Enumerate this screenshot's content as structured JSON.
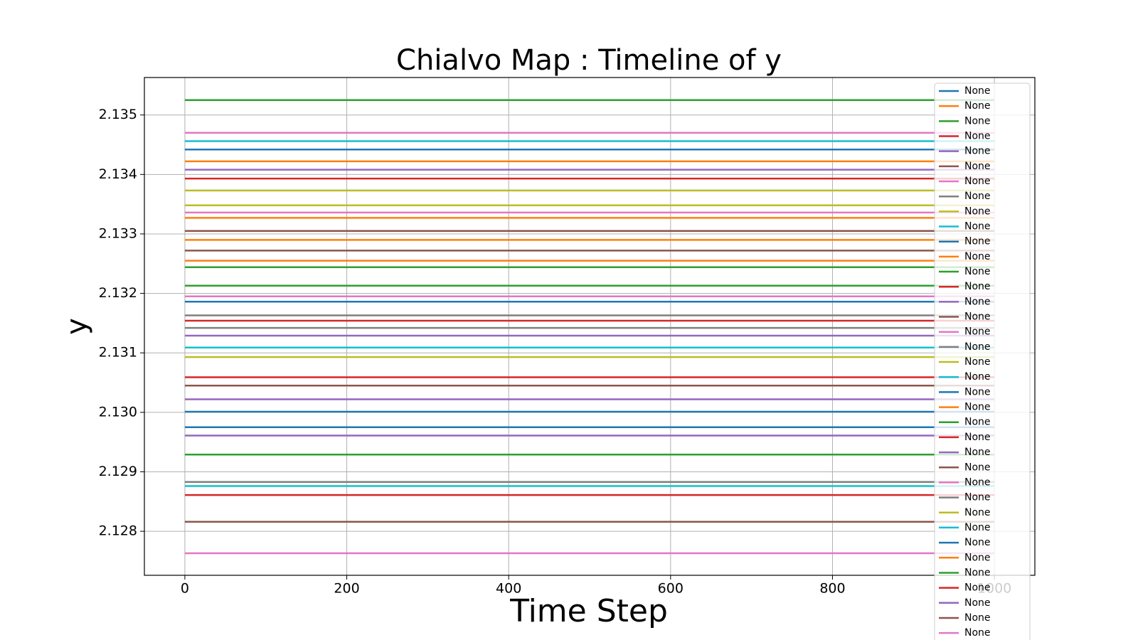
{
  "chart_data": {
    "type": "line",
    "title": "Chialvo Map : Timeline of y",
    "x_label": "Time Step",
    "y_label": "y",
    "x": [
      0,
      1000
    ],
    "xlim": [
      -50,
      1050
    ],
    "xticks": [
      0,
      200,
      400,
      600,
      800,
      1000
    ],
    "ylim": [
      2.12726,
      2.13563
    ],
    "yticks": [
      2.128,
      2.129,
      {
        "value": 2.13,
        "label": "2.130"
      },
      2.131,
      2.132,
      2.133,
      2.134,
      2.135
    ],
    "grid": true,
    "legend": "upper right",
    "series": [
      {
        "name": "None",
        "color": "#1f77b4",
        "values": [
          2.13442,
          2.13442
        ]
      },
      {
        "name": "None",
        "color": "#ff7f0e",
        "values": [
          2.13422,
          2.13422
        ]
      },
      {
        "name": "None",
        "color": "#2ca02c",
        "values": [
          2.13525,
          2.13525
        ]
      },
      {
        "name": "None",
        "color": "#d62728",
        "values": [
          2.13393,
          2.13393
        ]
      },
      {
        "name": "None",
        "color": "#9467bd",
        "values": [
          2.13408,
          2.13408
        ]
      },
      {
        "name": "None",
        "color": "#8c564b",
        "values": [
          2.13305,
          2.13305
        ]
      },
      {
        "name": "None",
        "color": "#e377c2",
        "values": [
          2.1347,
          2.1347
        ]
      },
      {
        "name": "None",
        "color": "#7f7f7f",
        "values": [
          2.12883,
          2.12883
        ]
      },
      {
        "name": "None",
        "color": "#bcbd22",
        "values": [
          2.13373,
          2.13373
        ]
      },
      {
        "name": "None",
        "color": "#17becf",
        "values": [
          2.13456,
          2.13456
        ]
      },
      {
        "name": "None",
        "color": "#1f77b4",
        "values": [
          2.13186,
          2.13186
        ]
      },
      {
        "name": "None",
        "color": "#ff7f0e",
        "values": [
          2.13255,
          2.13255
        ]
      },
      {
        "name": "None",
        "color": "#2ca02c",
        "values": [
          2.13244,
          2.13244
        ]
      },
      {
        "name": "None",
        "color": "#d62728",
        "values": [
          2.13154,
          2.13154
        ]
      },
      {
        "name": "None",
        "color": "#9467bd",
        "values": [
          2.13129,
          2.13129
        ]
      },
      {
        "name": "None",
        "color": "#8c564b",
        "values": [
          2.13272,
          2.13272
        ]
      },
      {
        "name": "None",
        "color": "#e377c2",
        "values": [
          2.13336,
          2.13336
        ]
      },
      {
        "name": "None",
        "color": "#7f7f7f",
        "values": [
          2.13142,
          2.13142
        ]
      },
      {
        "name": "None",
        "color": "#bcbd22",
        "values": [
          2.13348,
          2.13348
        ]
      },
      {
        "name": "None",
        "color": "#17becf",
        "values": [
          2.13109,
          2.13109
        ]
      },
      {
        "name": "None",
        "color": "#1f77b4",
        "values": [
          2.12975,
          2.12975
        ]
      },
      {
        "name": "None",
        "color": "#ff7f0e",
        "values": [
          2.1329,
          2.1329
        ]
      },
      {
        "name": "None",
        "color": "#2ca02c",
        "values": [
          2.13213,
          2.13213
        ]
      },
      {
        "name": "None",
        "color": "#d62728",
        "values": [
          2.13059,
          2.13059
        ]
      },
      {
        "name": "None",
        "color": "#9467bd",
        "values": [
          2.13022,
          2.13022
        ]
      },
      {
        "name": "None",
        "color": "#8c564b",
        "values": [
          2.13045,
          2.13045
        ]
      },
      {
        "name": "None",
        "color": "#e377c2",
        "values": [
          2.13195,
          2.13195
        ]
      },
      {
        "name": "None",
        "color": "#7f7f7f",
        "values": [
          2.13163,
          2.13163
        ]
      },
      {
        "name": "None",
        "color": "#bcbd22",
        "values": [
          2.13093,
          2.13093
        ]
      },
      {
        "name": "None",
        "color": "#17becf",
        "values": [
          2.12876,
          2.12876
        ]
      },
      {
        "name": "None",
        "color": "#1f77b4",
        "values": [
          2.13001,
          2.13001
        ]
      },
      {
        "name": "None",
        "color": "#ff7f0e",
        "values": [
          2.13327,
          2.13327
        ]
      },
      {
        "name": "None",
        "color": "#2ca02c",
        "values": [
          2.12929,
          2.12929
        ]
      },
      {
        "name": "None",
        "color": "#d62728",
        "values": [
          2.12861,
          2.12861
        ]
      },
      {
        "name": "None",
        "color": "#9467bd",
        "values": [
          2.12961,
          2.12961
        ]
      },
      {
        "name": "None",
        "color": "#8c564b",
        "values": [
          2.12816,
          2.12816
        ]
      },
      {
        "name": "None",
        "color": "#e377c2",
        "values": [
          2.12763,
          2.12763
        ]
      }
    ]
  }
}
